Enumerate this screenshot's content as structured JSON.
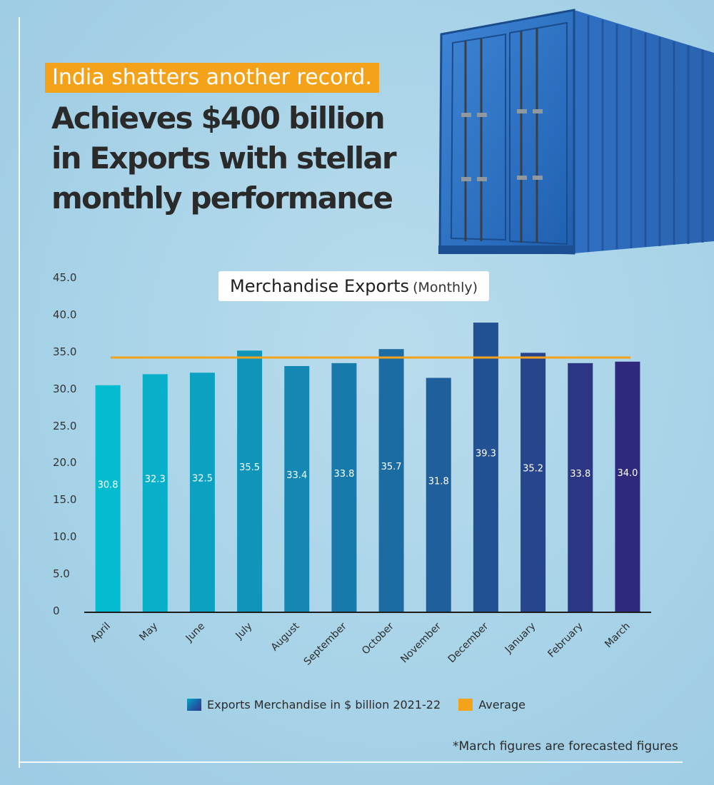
{
  "header": {
    "kicker": "India shatters another record.",
    "headline_lines": [
      "Achieves $400 billion",
      "in Exports with stellar",
      "monthly performance"
    ]
  },
  "chart_title": {
    "main": "Merchandise Exports",
    "sub": "(Monthly)"
  },
  "chart_data": {
    "type": "bar",
    "categories": [
      "April",
      "May",
      "June",
      "July",
      "August",
      "September",
      "October",
      "November",
      "December",
      "January",
      "February",
      "March"
    ],
    "series": [
      {
        "name": "Exports Merchandise in $ billion 2021-22",
        "values": [
          30.8,
          32.3,
          32.5,
          35.5,
          33.4,
          33.8,
          35.7,
          31.8,
          39.3,
          35.2,
          33.8,
          34.0
        ]
      }
    ],
    "average": {
      "name": "Average",
      "value": 34.0
    },
    "data_labels": [
      "30.8",
      "32.3",
      "32.5",
      "35.5",
      "33.4",
      "33.8",
      "35.7",
      "31.8",
      "39.3",
      "35.2",
      "33.8",
      "34.0"
    ],
    "ylim": [
      0,
      45
    ],
    "yticks": [
      "0",
      "5.0",
      "10.0",
      "15.0",
      "20.0",
      "25.0",
      "30.0",
      "35.0",
      "40.0",
      "45.0"
    ],
    "grid": false,
    "legend_position": "bottom",
    "colors": {
      "bar_start": "#04bccf",
      "bar_end": "#2f2a7e",
      "average": "#f4a21a",
      "label": "#ffffff"
    }
  },
  "legend": {
    "bars": "Exports Merchandise in $ billion 2021-22",
    "average": "Average"
  },
  "footnote": "*March figures are forecasted figures"
}
